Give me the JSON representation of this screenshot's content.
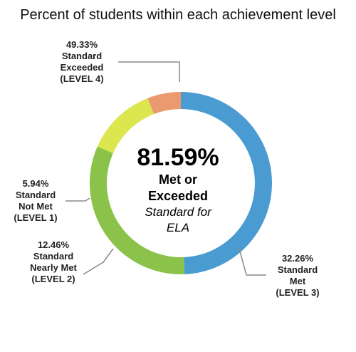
{
  "title": "Percent of students within each achievement level",
  "center": {
    "value": "81.59%",
    "line1": "Met or",
    "line2": "Exceeded",
    "line3": "Standard for",
    "line4": "ELA"
  },
  "chart_data": {
    "type": "pie",
    "title": "Percent of students within each achievement level",
    "donut": true,
    "slices": [
      {
        "key": "exceeded",
        "value": 49.33,
        "label_lines": [
          "49.33%",
          "Standard",
          "Exceeded",
          "(LEVEL 4)"
        ],
        "color": "#4a9bd1"
      },
      {
        "key": "met",
        "value": 32.26,
        "label_lines": [
          "32.26%",
          "Standard",
          "Met",
          "(LEVEL 3)"
        ],
        "color": "#8bc34a"
      },
      {
        "key": "nearly",
        "value": 12.46,
        "label_lines": [
          "12.46%",
          "Standard",
          "Nearly Met",
          "(LEVEL 2)"
        ],
        "color": "#dce64f"
      },
      {
        "key": "notmet",
        "value": 5.94,
        "label_lines": [
          "5.94%",
          "Standard",
          "Not Met",
          "(LEVEL 1)"
        ],
        "color": "#eb9a6f"
      }
    ]
  }
}
